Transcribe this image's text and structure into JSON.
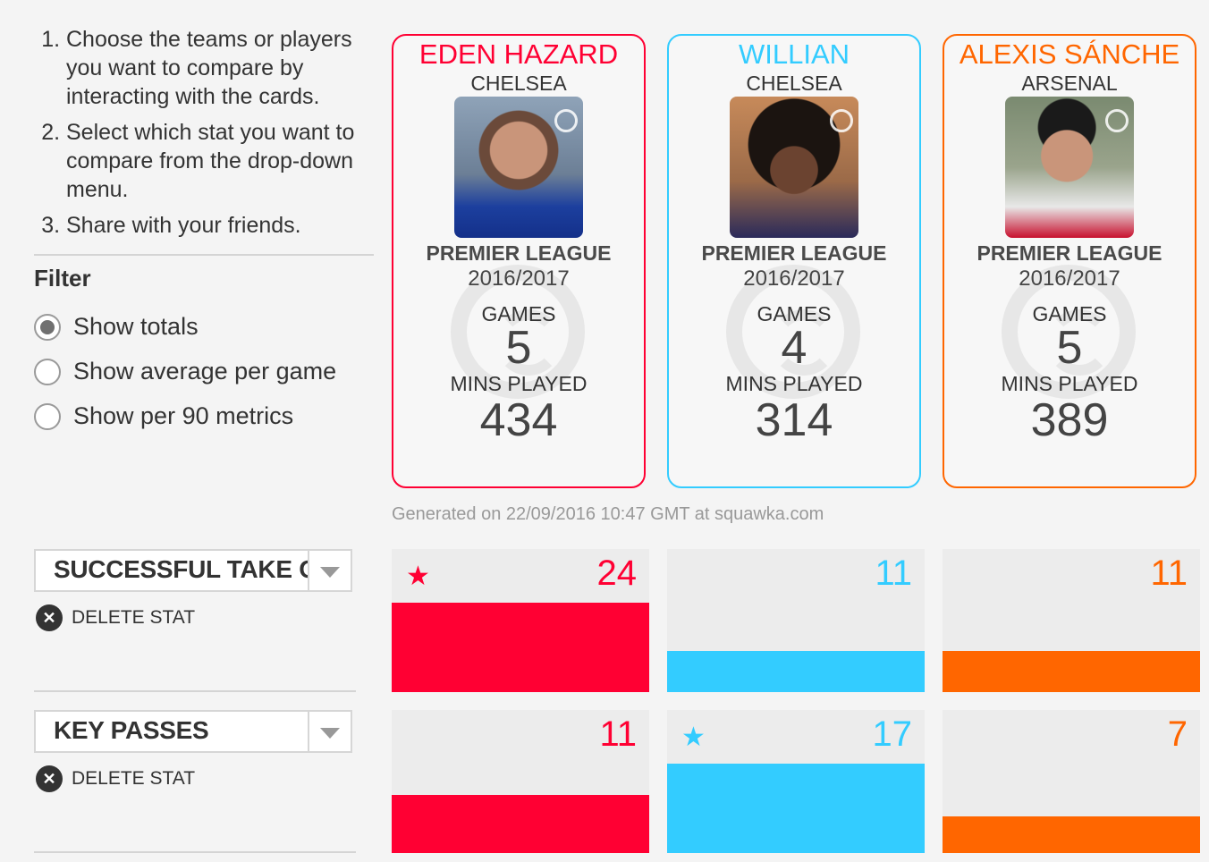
{
  "instructions": [
    "Choose the teams or players you want to compare by interacting with the cards.",
    "Select which stat you want to compare from the drop-down menu.",
    "Share with your friends."
  ],
  "filter": {
    "title": "Filter",
    "options": [
      {
        "label": "Show totals",
        "checked": true
      },
      {
        "label": "Show average per game",
        "checked": false
      },
      {
        "label": "Show per 90 metrics",
        "checked": false
      }
    ]
  },
  "colors": {
    "hazard": "#ff0033",
    "willian": "#33ccff",
    "sanchez": "#ff6600"
  },
  "cards": [
    {
      "name": "EDEN HAZARD",
      "team": "CHELSEA",
      "league": "PREMIER LEAGUE",
      "season": "2016/2017",
      "games_label": "GAMES",
      "games": "5",
      "mins_label": "MINS PLAYED",
      "mins": "434"
    },
    {
      "name": "WILLIAN",
      "team": "CHELSEA",
      "league": "PREMIER LEAGUE",
      "season": "2016/2017",
      "games_label": "GAMES",
      "games": "4",
      "mins_label": "MINS PLAYED",
      "mins": "314"
    },
    {
      "name": "ALEXIS SÁNCHE",
      "team": "ARSENAL",
      "league": "PREMIER LEAGUE",
      "season": "2016/2017",
      "games_label": "GAMES",
      "games": "5",
      "mins_label": "MINS PLAYED",
      "mins": "389"
    }
  ],
  "generated": "Generated on 22/09/2016 10:47 GMT at squawka.com",
  "stats": [
    {
      "selected": "SUCCESSFUL TAKE ONS",
      "delete_label": "DELETE STAT",
      "values": [
        "24",
        "11",
        "11"
      ],
      "fill_fraction": [
        1.0,
        0.46,
        0.46
      ],
      "leader": 0
    },
    {
      "selected": "KEY PASSES",
      "delete_label": "DELETE STAT",
      "values": [
        "11",
        "17",
        "7"
      ],
      "fill_fraction": [
        0.65,
        1.0,
        0.41
      ],
      "leader": 1
    }
  ]
}
